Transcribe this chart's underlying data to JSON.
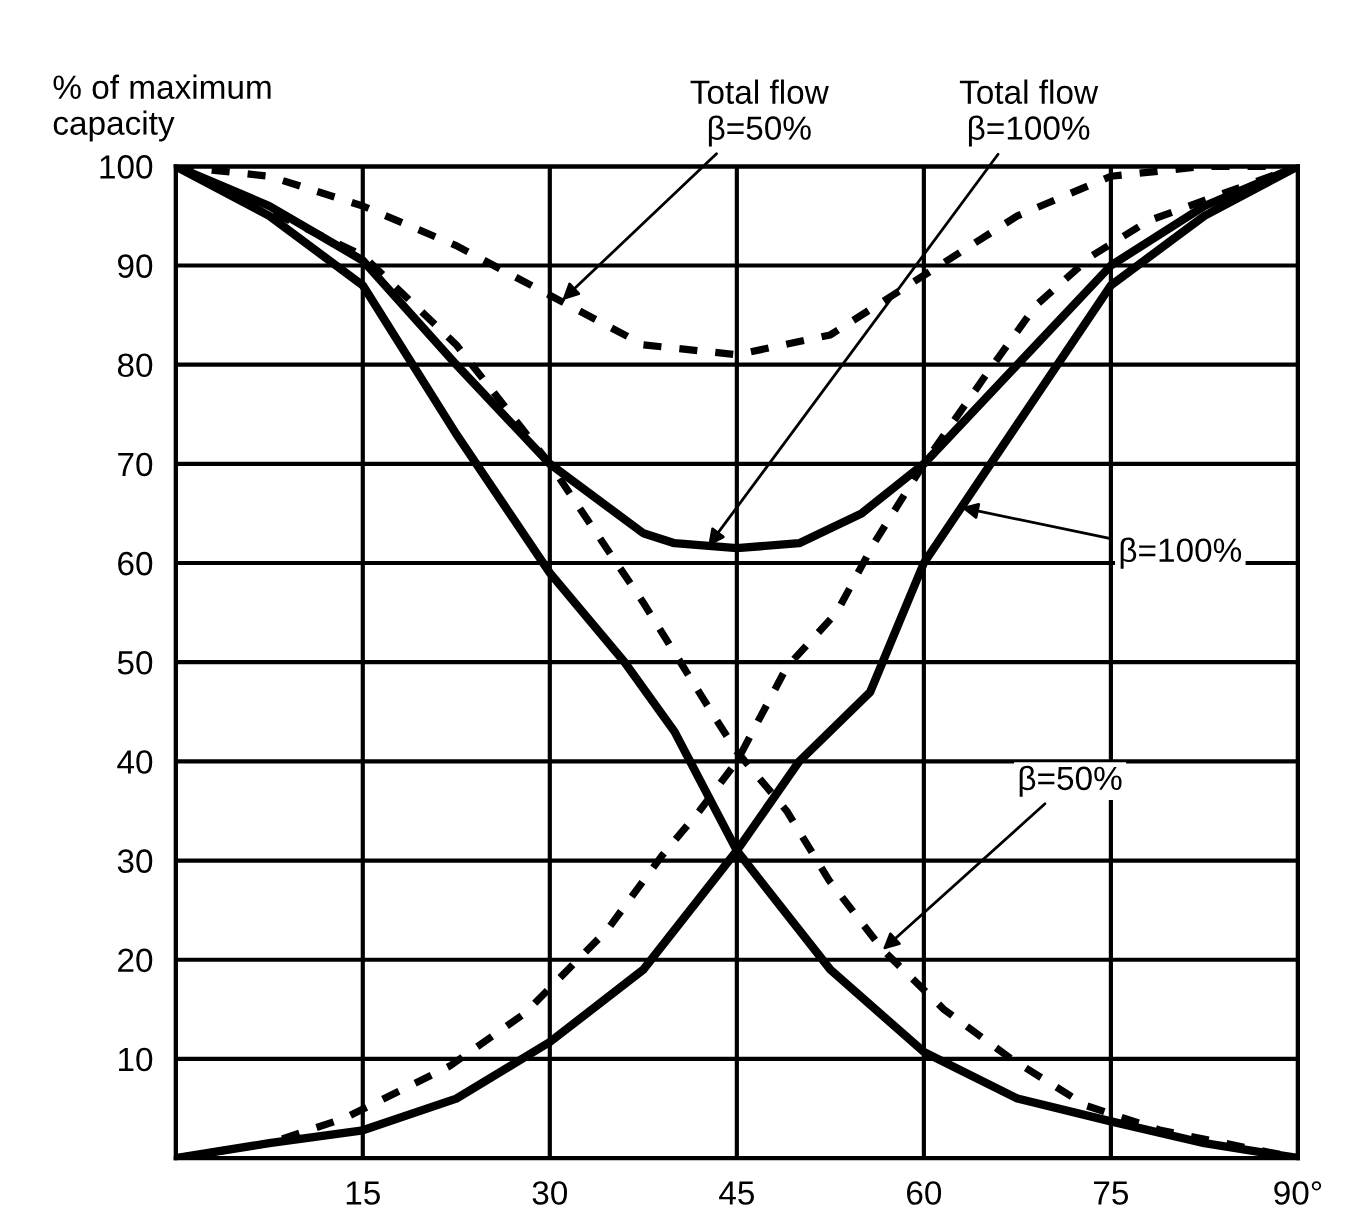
{
  "chart_data": {
    "type": "line",
    "ylabel": "% of maximum\ncapacity",
    "xlim": [
      0,
      90
    ],
    "ylim": [
      0,
      100
    ],
    "xticks": [
      {
        "value": 0,
        "label": null
      },
      15,
      30,
      45,
      60,
      75,
      {
        "value": 90,
        "label": "90°"
      }
    ],
    "yticks": [
      {
        "value": 0,
        "label": null
      },
      10,
      20,
      30,
      40,
      50,
      60,
      70,
      80,
      90,
      100
    ],
    "grid": true,
    "marker": "none",
    "series": [
      {
        "color": "#000000",
        "line_style": "solid",
        "x": [
          0,
          7.5,
          15,
          22.5,
          30,
          36,
          40,
          45,
          52.5,
          60,
          67.5,
          75,
          82.5,
          90
        ],
        "values": [
          100,
          95,
          88,
          73,
          59,
          50,
          43,
          31,
          19,
          10.7,
          6,
          3.7,
          1.5,
          0
        ]
      },
      {
        "color": "#000000",
        "line_style": "solid",
        "x": [
          0,
          7.5,
          15,
          22.5,
          30,
          37.5,
          45,
          50,
          55.7,
          60,
          67.5,
          75,
          82.5,
          90
        ],
        "values": [
          0,
          1.5,
          2.8,
          6,
          11.7,
          19,
          31,
          40,
          47,
          60,
          74,
          88,
          95,
          100
        ]
      },
      {
        "color": "#000000",
        "line_style": "solid",
        "x": [
          0,
          7.5,
          15,
          22.5,
          30,
          37.5,
          40,
          45,
          50,
          55,
          60,
          67.5,
          75,
          82.5,
          90
        ],
        "values": [
          100,
          96,
          90.5,
          80,
          70,
          63,
          62,
          61.5,
          62,
          65,
          70,
          80,
          90,
          96,
          100
        ]
      },
      {
        "color": "#000000",
        "line_style": "dashed",
        "x": [
          0,
          7.5,
          15,
          22.5,
          30,
          37.5,
          45,
          52.5,
          60,
          67.5,
          75,
          82.5,
          90
        ],
        "values": [
          100,
          99,
          96,
          92,
          87,
          82,
          81,
          83,
          89,
          95,
          99,
          100,
          100
        ]
      },
      {
        "color": "#000000",
        "line_style": "dashed",
        "x": [
          0,
          15,
          22.5,
          30,
          37.5,
          43.2,
          45,
          49,
          52.4,
          56.7,
          61.6,
          67,
          73,
          79,
          90
        ],
        "values": [
          100,
          91,
          82,
          70,
          56,
          44.5,
          41,
          35,
          28,
          21,
          15,
          10,
          5.3,
          2.8,
          0
        ]
      },
      {
        "color": "#000000",
        "line_style": "dashed",
        "x": [
          0,
          7.5,
          13.5,
          22,
          28,
          34.6,
          39,
          42,
          45,
          49,
          53,
          56,
          60,
          65,
          69,
          73.5,
          78,
          90
        ],
        "values": [
          0,
          1.5,
          4,
          9.3,
          14.6,
          23,
          30.5,
          35,
          40,
          49.5,
          55,
          62,
          70,
          79,
          86,
          91,
          94.5,
          100
        ]
      }
    ],
    "annotations": [
      {
        "text": "Total flow\nβ=50%",
        "x": 31,
        "y": 86.5
      },
      {
        "text": "Total flow\nβ=100%",
        "x": 42.7,
        "y": 61.7
      },
      {
        "text": "β=100%",
        "x": 63,
        "y": 65.6
      },
      {
        "text": "β=50%",
        "x": 56.7,
        "y": 21
      }
    ]
  }
}
